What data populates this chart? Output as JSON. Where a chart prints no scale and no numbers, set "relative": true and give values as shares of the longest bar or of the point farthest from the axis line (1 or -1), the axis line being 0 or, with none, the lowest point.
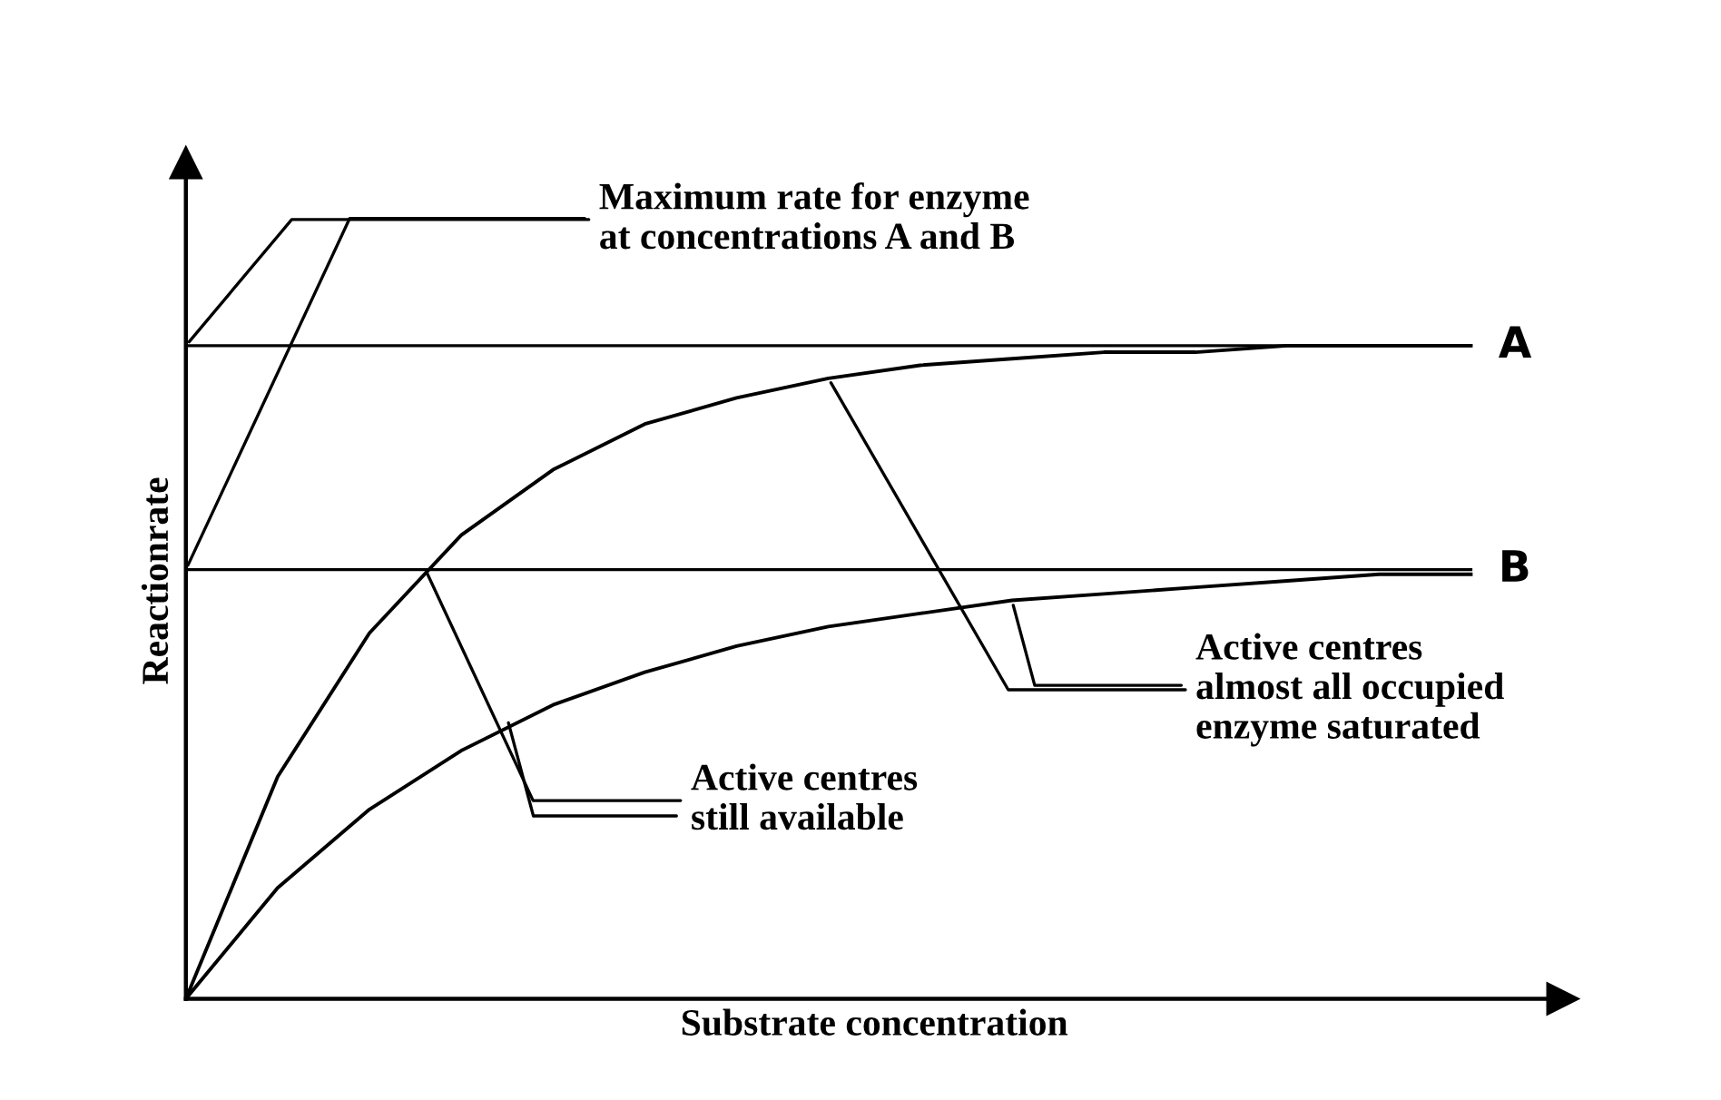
{
  "chart_data": {
    "type": "line",
    "relative": true,
    "xlabel": "Substrate concentration",
    "ylabel": "Reactionrate",
    "categories": [
      null,
      null,
      null,
      null,
      null,
      null,
      null,
      null,
      null,
      null,
      null,
      null,
      null,
      null,
      null
    ],
    "series": [
      {
        "color": "#000000",
        "values": [
          0,
          0.34,
          0.56,
          0.71,
          0.81,
          0.88,
          0.92,
          0.95,
          0.97,
          0.98,
          0.99,
          0.99,
          1.0,
          1.0,
          1.0
        ]
      },
      {
        "color": "#000000",
        "values": [
          0,
          0.17,
          0.29,
          0.38,
          0.45,
          0.5,
          0.54,
          0.57,
          0.59,
          0.61,
          0.62,
          0.63,
          0.64,
          0.65,
          0.65
        ]
      }
    ],
    "ref_lines": [
      {
        "axis": "y",
        "value": 1.0,
        "label": "A",
        "color": "#000000"
      },
      {
        "axis": "y",
        "value": 0.657,
        "label": "B",
        "color": "#000000"
      }
    ],
    "annotations": [
      "Maximum rate for enzyme\nat concentrations A and B",
      "Active centres\nalmost all occupied\nenzyme saturated",
      "Active centres\nstill available"
    ],
    "marker": "none",
    "line_style": "solid",
    "legend": false
  }
}
